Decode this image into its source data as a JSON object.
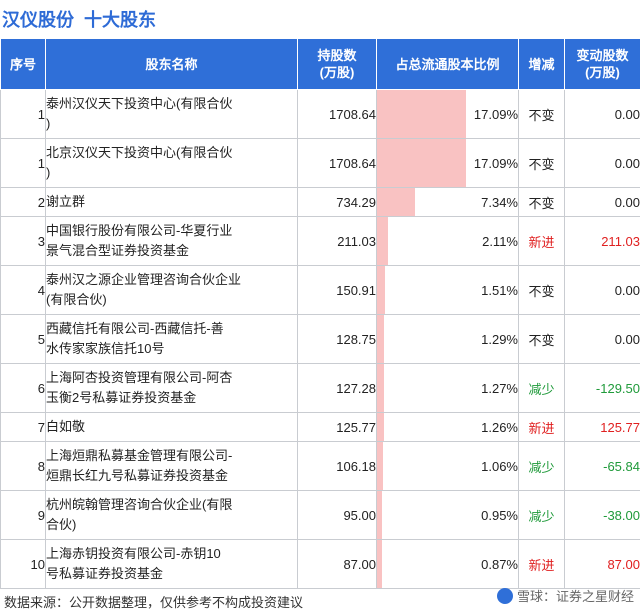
{
  "header": {
    "company": "汉仪股份",
    "section": "十大股东"
  },
  "table": {
    "headers": {
      "rank": "序号",
      "name": "股东名称",
      "shares_line1": "持股数",
      "shares_line2": "(万股)",
      "ratio": "占总流通股本比例",
      "change": "增减",
      "delta_line1": "变动股数",
      "delta_line2": "(万股)"
    },
    "rows": [
      {
        "rank": "1",
        "name": "泰州汉仪天下投资中心(有限合伙\n)",
        "shares": "1708.64",
        "ratio_text": "17.09%",
        "ratio": 17.09,
        "change": "不变",
        "delta": "0.00"
      },
      {
        "rank": "1",
        "name": "北京汉仪天下投资中心(有限合伙\n)",
        "shares": "1708.64",
        "ratio_text": "17.09%",
        "ratio": 17.09,
        "change": "不变",
        "delta": "0.00"
      },
      {
        "rank": "2",
        "name": "谢立群",
        "shares": "734.29",
        "ratio_text": "7.34%",
        "ratio": 7.34,
        "change": "不变",
        "delta": "0.00"
      },
      {
        "rank": "3",
        "name": "中国银行股份有限公司-华夏行业\n景气混合型证券投资基金",
        "shares": "211.03",
        "ratio_text": "2.11%",
        "ratio": 2.11,
        "change": "新进",
        "delta": "211.03"
      },
      {
        "rank": "4",
        "name": "泰州汉之源企业管理咨询合伙企业\n(有限合伙)",
        "shares": "150.91",
        "ratio_text": "1.51%",
        "ratio": 1.51,
        "change": "不变",
        "delta": "0.00"
      },
      {
        "rank": "5",
        "name": "西藏信托有限公司-西藏信托-善\n水传家家族信托10号",
        "shares": "128.75",
        "ratio_text": "1.29%",
        "ratio": 1.29,
        "change": "不变",
        "delta": "0.00"
      },
      {
        "rank": "6",
        "name": "上海阿杏投资管理有限公司-阿杏\n玉衡2号私募证券投资基金",
        "shares": "127.28",
        "ratio_text": "1.27%",
        "ratio": 1.27,
        "change": "减少",
        "delta": "-129.50"
      },
      {
        "rank": "7",
        "name": "白如敬",
        "shares": "125.77",
        "ratio_text": "1.26%",
        "ratio": 1.26,
        "change": "新进",
        "delta": "125.77"
      },
      {
        "rank": "8",
        "name": "上海烜鼎私募基金管理有限公司-\n烜鼎长红九号私募证券投资基金",
        "shares": "106.18",
        "ratio_text": "1.06%",
        "ratio": 1.06,
        "change": "减少",
        "delta": "-65.84"
      },
      {
        "rank": "9",
        "name": "杭州皖翰管理咨询合伙企业(有限\n合伙)",
        "shares": "95.00",
        "ratio_text": "0.95%",
        "ratio": 0.95,
        "change": "减少",
        "delta": "-38.00"
      },
      {
        "rank": "10",
        "name": "上海赤钥投资有限公司-赤钥10\n号私募证券投资基金",
        "shares": "87.00",
        "ratio_text": "0.87%",
        "ratio": 0.87,
        "change": "新进",
        "delta": "87.00"
      }
    ]
  },
  "colors": {
    "header_bg": "#2f6fd8",
    "bar": "#f9c2c2",
    "increase": "#e02020",
    "decrease": "#1f9a3a",
    "neutral": "#222222"
  },
  "footer": {
    "source": "数据来源：公开数据整理，仅供参考不构成投资建议",
    "brand": "雪球：证券之星财经"
  }
}
